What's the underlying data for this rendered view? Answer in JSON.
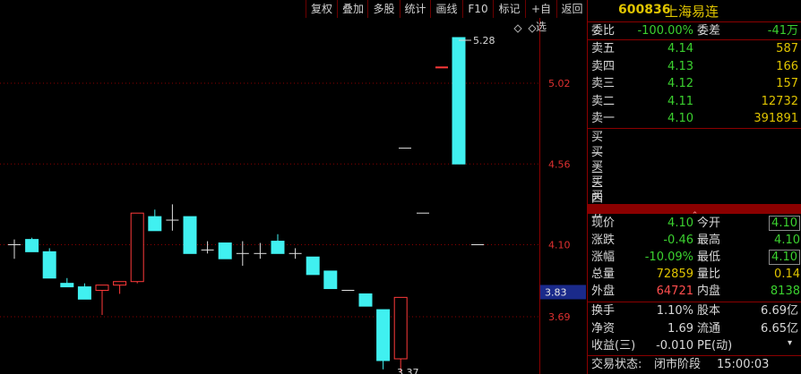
{
  "toolbar": {
    "buttons": [
      "复权",
      "叠加",
      "多股",
      "统计",
      "画线",
      "F10",
      "标记",
      "+自选",
      "返回"
    ]
  },
  "chart": {
    "y_ticks": [
      "5.02",
      "4.56",
      "4.10",
      "3.69"
    ],
    "current_price_tag": "3.83",
    "high_label": "5.28",
    "low_label": "3.37",
    "colors": {
      "up": "#ff3a3a",
      "down": "#40f0f0",
      "grid": "#8b0000",
      "axis_text": "#e03030",
      "tag_bg": "#1a2a8a"
    }
  },
  "chart_data": {
    "type": "candlestick",
    "y_ticks": [
      5.02,
      4.56,
      4.1,
      3.69
    ],
    "candles": [
      {
        "o": 4.1,
        "h": 4.13,
        "l": 4.02,
        "c": 4.1
      },
      {
        "o": 4.13,
        "h": 4.14,
        "l": 4.06,
        "c": 4.06
      },
      {
        "o": 4.06,
        "h": 4.08,
        "l": 3.91,
        "c": 3.91
      },
      {
        "o": 3.88,
        "h": 3.91,
        "l": 3.86,
        "c": 3.86
      },
      {
        "o": 3.86,
        "h": 3.88,
        "l": 3.79,
        "c": 3.79
      },
      {
        "o": 3.84,
        "h": 3.87,
        "l": 3.7,
        "c": 3.87
      },
      {
        "o": 3.87,
        "h": 3.89,
        "l": 3.82,
        "c": 3.89
      },
      {
        "o": 3.89,
        "h": 4.28,
        "l": 3.88,
        "c": 4.28
      },
      {
        "o": 4.26,
        "h": 4.3,
        "l": 4.18,
        "c": 4.18
      },
      {
        "o": 4.24,
        "h": 4.33,
        "l": 4.18,
        "c": 4.24
      },
      {
        "o": 4.26,
        "h": 4.26,
        "l": 4.05,
        "c": 4.05
      },
      {
        "o": 4.07,
        "h": 4.12,
        "l": 4.05,
        "c": 4.07
      },
      {
        "o": 4.11,
        "h": 4.11,
        "l": 4.02,
        "c": 4.02
      },
      {
        "o": 4.05,
        "h": 4.12,
        "l": 3.98,
        "c": 4.05
      },
      {
        "o": 4.05,
        "h": 4.11,
        "l": 4.02,
        "c": 4.05
      },
      {
        "o": 4.12,
        "h": 4.16,
        "l": 4.05,
        "c": 4.05
      },
      {
        "o": 4.05,
        "h": 4.08,
        "l": 4.02,
        "c": 4.05
      },
      {
        "o": 4.03,
        "h": 4.03,
        "l": 3.93,
        "c": 3.93
      },
      {
        "o": 3.95,
        "h": 3.95,
        "l": 3.85,
        "c": 3.85
      },
      {
        "o": 3.84,
        "h": 3.84,
        "l": 3.84,
        "c": 3.84
      },
      {
        "o": 3.82,
        "h": 3.82,
        "l": 3.75,
        "c": 3.75
      },
      {
        "o": 3.73,
        "h": 3.73,
        "l": 3.39,
        "c": 3.44
      },
      {
        "o": 3.45,
        "h": 3.8,
        "l": 3.37,
        "c": 3.8
      },
      {
        "o": 4.28,
        "h": 4.28,
        "l": 4.28,
        "c": 4.28
      },
      {
        "o": 4.65,
        "h": 4.65,
        "l": 4.65,
        "c": 4.65
      },
      {
        "o": 5.11,
        "h": 5.11,
        "l": 5.11,
        "c": 5.11
      },
      {
        "o": 5.28,
        "h": 5.28,
        "l": 4.56,
        "c": 4.56
      },
      {
        "o": 4.1,
        "h": 4.1,
        "l": 4.1,
        "c": 4.1
      }
    ]
  },
  "quote": {
    "code": "600836",
    "name": "上海易连",
    "webi_label": "委比",
    "webi_value": "-100.00%",
    "weicha_label": "委差",
    "weicha_value": "-41万",
    "sells": [
      {
        "label": "卖五",
        "price": "4.14",
        "vol": "587"
      },
      {
        "label": "卖四",
        "price": "4.13",
        "vol": "166"
      },
      {
        "label": "卖三",
        "price": "4.12",
        "vol": "157"
      },
      {
        "label": "卖二",
        "price": "4.11",
        "vol": "12732"
      },
      {
        "label": "卖一",
        "price": "4.10",
        "vol": "391891"
      }
    ],
    "buys": [
      "买一",
      "买二",
      "买三",
      "买四",
      "买五"
    ],
    "expand_icon": "chevron-up-icon",
    "stats": [
      {
        "l1": "现价",
        "v1": "4.10",
        "c1": "g",
        "l2": "今开",
        "v2": "4.10",
        "c2": "g",
        "box2": true
      },
      {
        "l1": "涨跌",
        "v1": "-0.46",
        "c1": "g",
        "l2": "最高",
        "v2": "4.10",
        "c2": "g",
        "box2": false
      },
      {
        "l1": "涨幅",
        "v1": "-10.09%",
        "c1": "g",
        "l2": "最低",
        "v2": "4.10",
        "c2": "g",
        "box2": true
      },
      {
        "l1": "总量",
        "v1": "72859",
        "c1": "y",
        "l2": "量比",
        "v2": "0.14",
        "c2": "y",
        "box2": false
      },
      {
        "l1": "外盘",
        "v1": "64721",
        "c1": "r",
        "l2": "内盘",
        "v2": "8138",
        "c2": "g",
        "box2": false
      }
    ],
    "stats2": [
      {
        "l1": "换手",
        "v1": "1.10%",
        "l2": "股本",
        "v2": "6.69亿"
      },
      {
        "l1": "净资",
        "v1": "1.69",
        "l2": "流通",
        "v2": "6.65亿"
      },
      {
        "l1": "收益(三)",
        "v1": "-0.010",
        "l2": "PE(动)",
        "v2": ""
      }
    ],
    "trade_status_label": "交易状态:",
    "trade_status_value": "闭市阶段",
    "trade_time": "15:00:03"
  }
}
